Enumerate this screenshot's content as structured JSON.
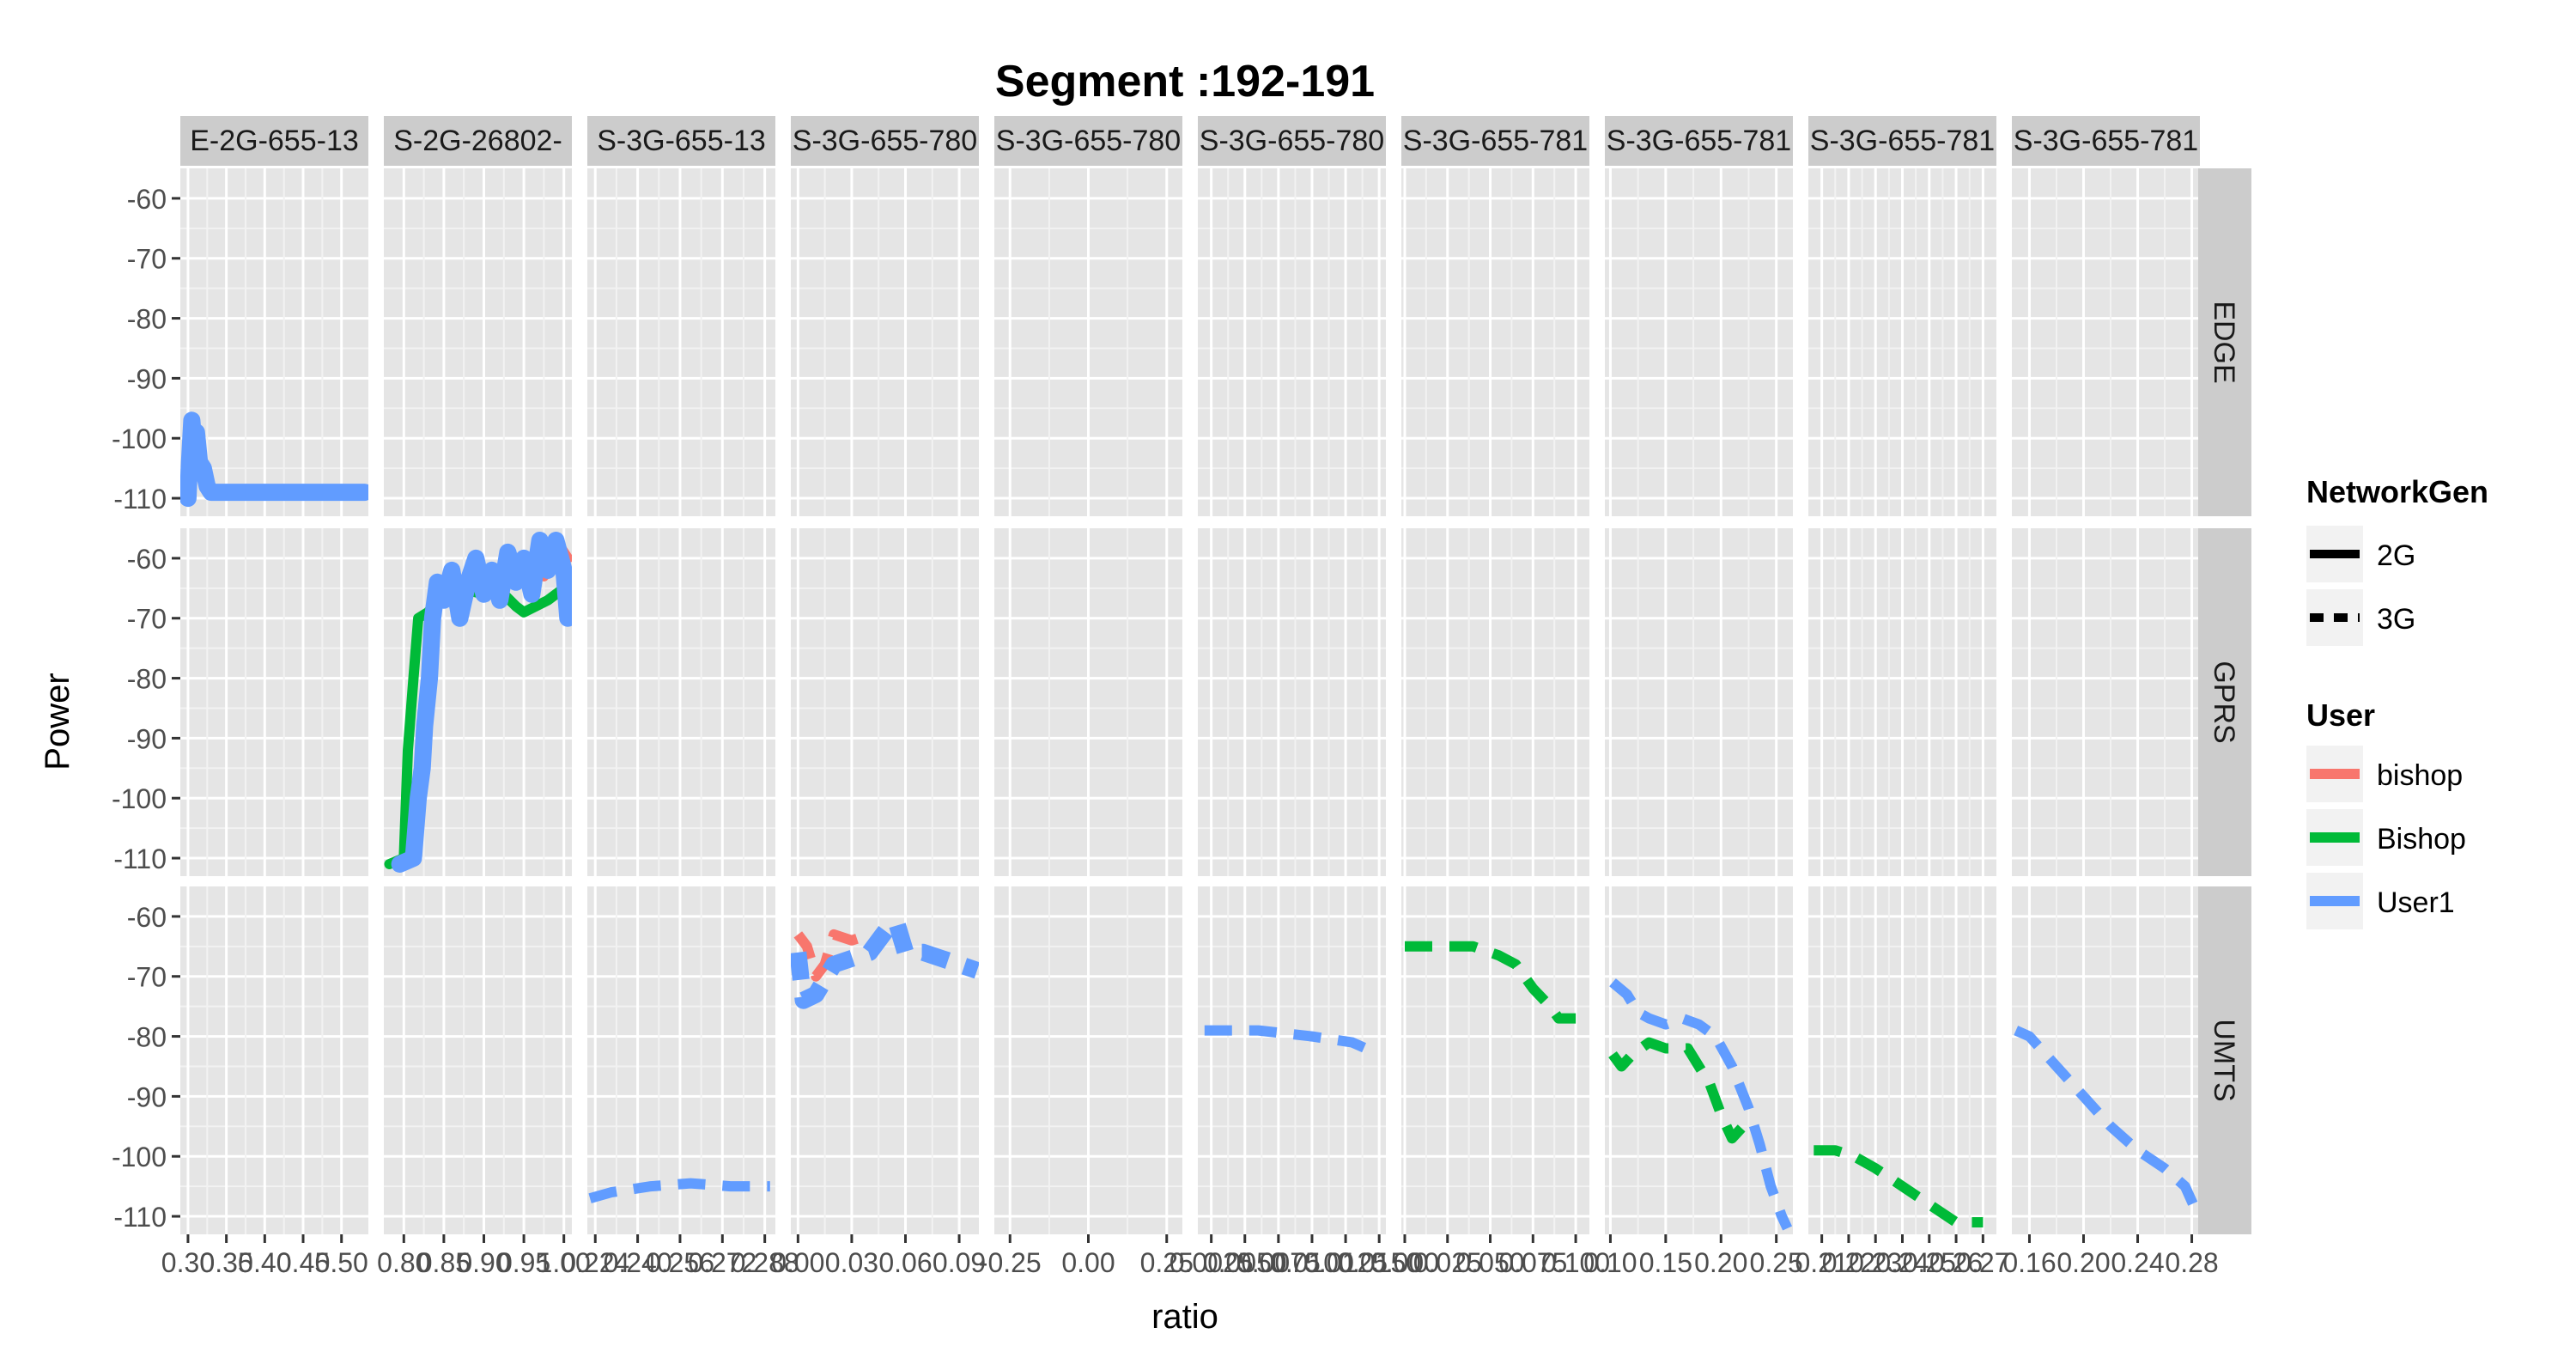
{
  "chart_data": {
    "type": "line",
    "title": "Segment :192-191",
    "xlabel": "ratio",
    "ylabel": "Power",
    "ylim": [
      -113,
      -55
    ],
    "y_ticks": [
      -60,
      -70,
      -80,
      -90,
      -100,
      -110
    ],
    "y_tick_labels": [
      "-60",
      "-70",
      "-80",
      "-90",
      "-100",
      "-110"
    ],
    "grid": true,
    "legend_position": "right",
    "row_strips": [
      "EDGE",
      "GPRS",
      "UMTS"
    ],
    "colors": {
      "panel_bg": "#e5e5e5",
      "strip_bg": "#cccccc",
      "grid_major": "#ffffff",
      "grid_minor": "#f2f2f2",
      "bishop": "#f8766d",
      "Bishop": "#00ba38",
      "User1": "#619cff"
    },
    "legend": {
      "network_title": "NetworkGen",
      "network_items": [
        {
          "label": "2G",
          "dash": "solid"
        },
        {
          "label": "3G",
          "dash": "dashed"
        }
      ],
      "user_title": "User",
      "user_items": [
        {
          "label": "bishop",
          "color": "#f8766d"
        },
        {
          "label": "Bishop",
          "color": "#00ba38"
        },
        {
          "label": "User1",
          "color": "#619cff"
        }
      ]
    },
    "columns": [
      {
        "strip": "E-2G-655-13",
        "xlim": [
          0.29,
          0.535
        ],
        "ticks": [
          0.3,
          0.35,
          0.4,
          0.45,
          0.5
        ],
        "tick_labels": [
          "0.30",
          "0.35",
          "0.40",
          "0.45",
          "0.50"
        ]
      },
      {
        "strip": "S-2G-26802-",
        "xlim": [
          0.775,
          1.01
        ],
        "ticks": [
          0.8,
          0.85,
          0.9,
          0.95,
          1.0
        ],
        "tick_labels": [
          "0.80",
          "0.85",
          "0.90",
          "0.95",
          "1.00"
        ]
      },
      {
        "strip": "S-3G-655-13",
        "xlim": [
          0.221,
          0.292
        ],
        "ticks": [
          0.224,
          0.24,
          0.256,
          0.272,
          0.288
        ],
        "tick_labels": [
          "0.224",
          "0.240",
          "0.256",
          "0.272",
          "0.288"
        ]
      },
      {
        "strip": "S-3G-655-780",
        "xlim": [
          -0.004,
          0.101
        ],
        "ticks": [
          0.0,
          0.03,
          0.06,
          0.09
        ],
        "tick_labels": [
          "0.00",
          "0.03",
          "0.06",
          "0.09"
        ]
      },
      {
        "strip": "S-3G-655-780",
        "xlim": [
          -0.3,
          0.3
        ],
        "ticks": [
          -0.25,
          0.0,
          0.25
        ],
        "tick_labels": [
          "-0.25",
          "0.00",
          "0.25"
        ]
      },
      {
        "strip": "S-3G-655-780",
        "xlim": [
          0.0015,
          0.0155
        ],
        "ticks": [
          0.0025,
          0.005,
          0.0075,
          0.01,
          0.0125,
          0.015
        ],
        "tick_labels": [
          "0.0025",
          "0.0050",
          "0.0075",
          "0.0100",
          "0.0125",
          "0.0150"
        ]
      },
      {
        "strip": "S-3G-655-781",
        "xlim": [
          -0.002,
          0.108
        ],
        "ticks": [
          0.0,
          0.025,
          0.05,
          0.075,
          0.1
        ],
        "tick_labels": [
          "0.000",
          "0.025",
          "0.050",
          "0.075",
          "0.100"
        ]
      },
      {
        "strip": "S-3G-655-781",
        "xlim": [
          0.095,
          0.265
        ],
        "ticks": [
          0.1,
          0.15,
          0.2,
          0.25
        ],
        "tick_labels": [
          "0.10",
          "0.15",
          "0.20",
          "0.25"
        ]
      },
      {
        "strip": "S-3G-655-781",
        "xlim": [
          0.205,
          0.275
        ],
        "ticks": [
          0.21,
          0.22,
          0.23,
          0.24,
          0.25,
          0.26,
          0.27
        ],
        "tick_labels": [
          "0.21",
          "0.22",
          "0.23",
          "0.24",
          "0.25",
          "0.26",
          "0.27"
        ]
      },
      {
        "strip": "S-3G-655-781",
        "xlim": [
          0.147,
          0.286
        ],
        "ticks": [
          0.16,
          0.2,
          0.24,
          0.28
        ],
        "tick_labels": [
          "0.16",
          "0.20",
          "0.24",
          "0.28"
        ]
      }
    ],
    "series": [
      {
        "row": 0,
        "col": 0,
        "user": "User1",
        "network": "2G",
        "style": "band",
        "points": [
          [
            0.3,
            -110
          ],
          [
            0.302,
            -104
          ],
          [
            0.305,
            -97
          ],
          [
            0.308,
            -102
          ],
          [
            0.311,
            -99
          ],
          [
            0.315,
            -104
          ],
          [
            0.32,
            -105
          ],
          [
            0.325,
            -108
          ],
          [
            0.33,
            -109
          ],
          [
            0.4,
            -109
          ],
          [
            0.45,
            -109
          ],
          [
            0.53,
            -109
          ]
        ]
      },
      {
        "row": 1,
        "col": 1,
        "user": "bishop",
        "network": "2G",
        "style": "line",
        "points": [
          [
            0.975,
            -63
          ],
          [
            0.985,
            -61
          ],
          [
            0.995,
            -58
          ],
          [
            1.005,
            -60
          ]
        ]
      },
      {
        "row": 1,
        "col": 1,
        "user": "Bishop",
        "network": "2G",
        "style": "line",
        "points": [
          [
            0.782,
            -111
          ],
          [
            0.8,
            -110
          ],
          [
            0.805,
            -92
          ],
          [
            0.812,
            -80
          ],
          [
            0.818,
            -70
          ],
          [
            0.83,
            -69
          ],
          [
            0.85,
            -66
          ],
          [
            0.87,
            -65
          ],
          [
            0.9,
            -66
          ],
          [
            0.925,
            -66
          ],
          [
            0.94,
            -68
          ],
          [
            0.95,
            -69
          ],
          [
            0.965,
            -68
          ],
          [
            0.98,
            -67
          ],
          [
            1.0,
            -65
          ]
        ]
      },
      {
        "row": 1,
        "col": 1,
        "user": "User1",
        "network": "2G",
        "style": "band",
        "points": [
          [
            0.795,
            -111
          ],
          [
            0.812,
            -110
          ],
          [
            0.818,
            -100
          ],
          [
            0.823,
            -95
          ],
          [
            0.826,
            -88
          ],
          [
            0.832,
            -80
          ],
          [
            0.836,
            -70
          ],
          [
            0.842,
            -64
          ],
          [
            0.85,
            -67
          ],
          [
            0.86,
            -62
          ],
          [
            0.87,
            -70
          ],
          [
            0.88,
            -64
          ],
          [
            0.89,
            -60
          ],
          [
            0.9,
            -66
          ],
          [
            0.91,
            -62
          ],
          [
            0.92,
            -67
          ],
          [
            0.93,
            -59
          ],
          [
            0.94,
            -64
          ],
          [
            0.95,
            -60
          ],
          [
            0.96,
            -66
          ],
          [
            0.97,
            -57
          ],
          [
            0.98,
            -62
          ],
          [
            0.99,
            -57
          ],
          [
            1.0,
            -62
          ],
          [
            1.005,
            -70
          ]
        ]
      },
      {
        "row": 2,
        "col": 2,
        "user": "User1",
        "network": "3G",
        "style": "line",
        "points": [
          [
            0.222,
            -107
          ],
          [
            0.23,
            -106
          ],
          [
            0.245,
            -105
          ],
          [
            0.26,
            -104.5
          ],
          [
            0.275,
            -105
          ],
          [
            0.29,
            -105
          ]
        ]
      },
      {
        "row": 2,
        "col": 3,
        "user": "bishop",
        "network": "3G",
        "style": "line",
        "points": [
          [
            0.0,
            -63
          ],
          [
            0.005,
            -65
          ],
          [
            0.01,
            -70
          ],
          [
            0.015,
            -68
          ],
          [
            0.02,
            -63
          ],
          [
            0.03,
            -64
          ],
          [
            0.04,
            -63
          ]
        ]
      },
      {
        "row": 2,
        "col": 3,
        "user": "User1",
        "network": "3G",
        "style": "band",
        "points": [
          [
            0.0,
            -66
          ],
          [
            0.003,
            -74
          ],
          [
            0.01,
            -73
          ],
          [
            0.02,
            -68
          ],
          [
            0.03,
            -67
          ],
          [
            0.04,
            -66
          ],
          [
            0.05,
            -62
          ],
          [
            0.055,
            -61
          ],
          [
            0.06,
            -66
          ],
          [
            0.07,
            -66
          ],
          [
            0.08,
            -67
          ],
          [
            0.09,
            -68
          ],
          [
            0.1,
            -69
          ]
        ]
      },
      {
        "row": 2,
        "col": 5,
        "user": "User1",
        "network": "3G",
        "style": "line",
        "points": [
          [
            0.002,
            -79
          ],
          [
            0.006,
            -79
          ],
          [
            0.01,
            -80
          ],
          [
            0.013,
            -81
          ],
          [
            0.015,
            -83
          ]
        ]
      },
      {
        "row": 2,
        "col": 6,
        "user": "Bishop",
        "network": "3G",
        "style": "line",
        "points": [
          [
            0.0,
            -65
          ],
          [
            0.02,
            -65
          ],
          [
            0.04,
            -65
          ],
          [
            0.055,
            -66.5
          ],
          [
            0.065,
            -68
          ],
          [
            0.075,
            -72
          ],
          [
            0.085,
            -75
          ],
          [
            0.09,
            -77
          ],
          [
            0.1,
            -77
          ]
        ]
      },
      {
        "row": 2,
        "col": 7,
        "user": "Bishop",
        "network": "3G",
        "style": "line",
        "points": [
          [
            0.102,
            -83
          ],
          [
            0.11,
            -85
          ],
          [
            0.12,
            -83
          ],
          [
            0.135,
            -81
          ],
          [
            0.15,
            -82
          ],
          [
            0.17,
            -82
          ],
          [
            0.19,
            -88
          ],
          [
            0.2,
            -93
          ],
          [
            0.21,
            -97
          ],
          [
            0.22,
            -95
          ]
        ]
      },
      {
        "row": 2,
        "col": 7,
        "user": "User1",
        "network": "3G",
        "style": "line",
        "points": [
          [
            0.102,
            -71
          ],
          [
            0.115,
            -73
          ],
          [
            0.125,
            -76
          ],
          [
            0.135,
            -77
          ],
          [
            0.15,
            -78
          ],
          [
            0.165,
            -77
          ],
          [
            0.18,
            -78
          ],
          [
            0.195,
            -80
          ],
          [
            0.21,
            -85
          ],
          [
            0.225,
            -92
          ],
          [
            0.235,
            -98
          ],
          [
            0.245,
            -105
          ],
          [
            0.255,
            -110
          ],
          [
            0.26,
            -112
          ]
        ]
      },
      {
        "row": 2,
        "col": 8,
        "user": "Bishop",
        "network": "3G",
        "style": "line",
        "points": [
          [
            0.207,
            -99
          ],
          [
            0.215,
            -99
          ],
          [
            0.222,
            -100
          ],
          [
            0.23,
            -102
          ],
          [
            0.24,
            -105
          ],
          [
            0.25,
            -108
          ],
          [
            0.26,
            -111
          ],
          [
            0.27,
            -111
          ]
        ]
      },
      {
        "row": 2,
        "col": 9,
        "user": "User1",
        "network": "3G",
        "style": "line",
        "points": [
          [
            0.15,
            -79
          ],
          [
            0.16,
            -80
          ],
          [
            0.18,
            -85
          ],
          [
            0.2,
            -90
          ],
          [
            0.22,
            -95
          ],
          [
            0.24,
            -99
          ],
          [
            0.26,
            -102
          ],
          [
            0.275,
            -105
          ],
          [
            0.285,
            -110
          ]
        ]
      }
    ]
  }
}
